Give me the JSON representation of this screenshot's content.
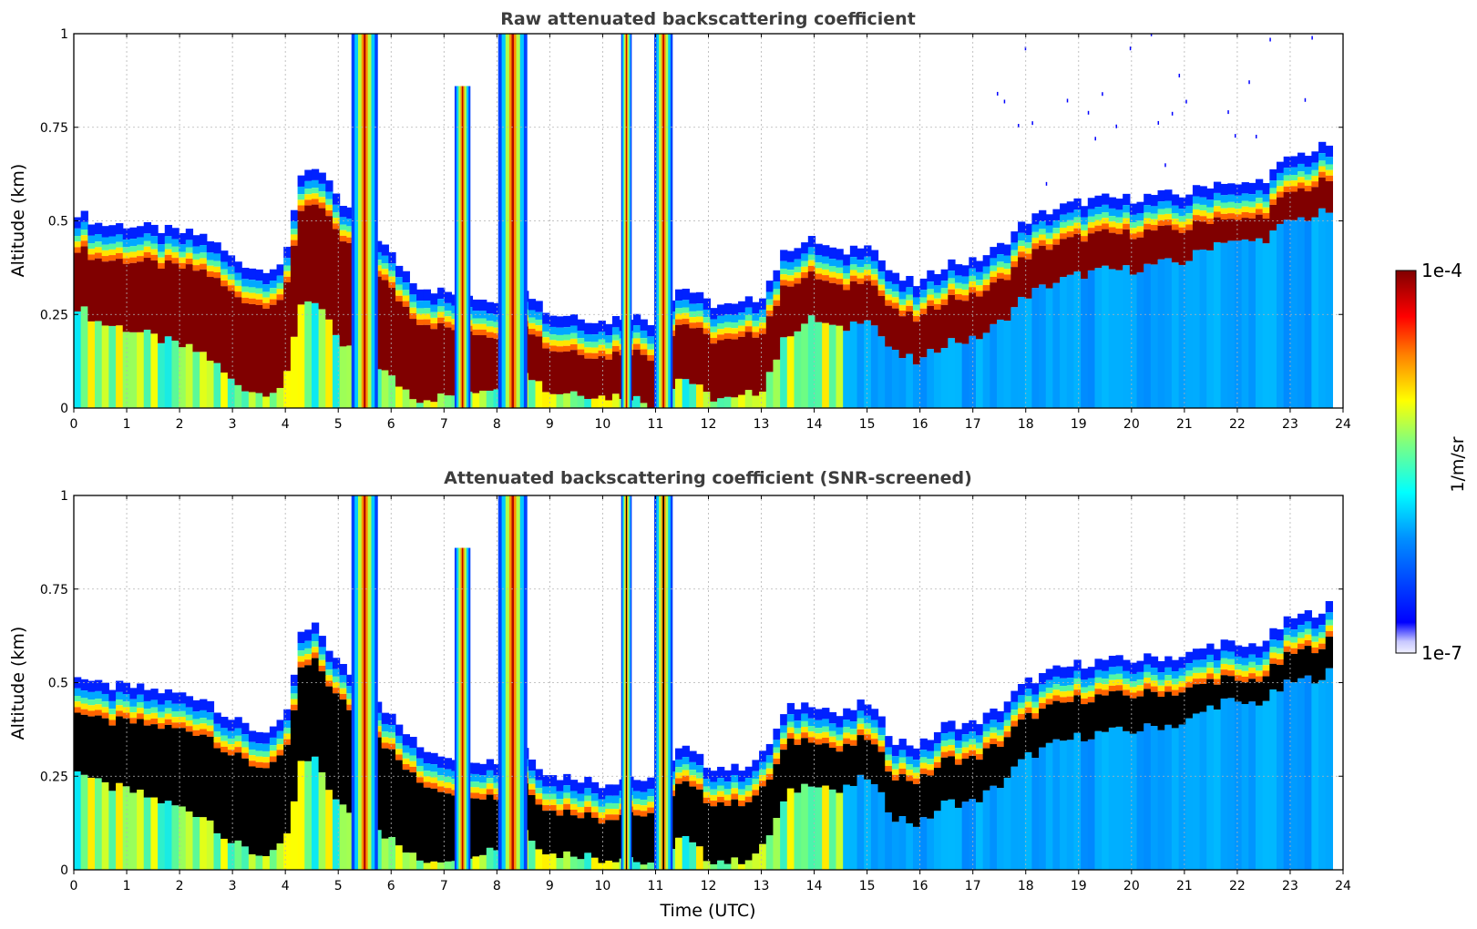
{
  "chart_data": [
    {
      "type": "heatmap",
      "title": "Raw attenuated backscattering coefficient",
      "xlabel": "",
      "ylabel": "Altitude (km)",
      "xlim": [
        0,
        24
      ],
      "ylim": [
        0,
        1
      ],
      "xticks": [
        "0",
        "1",
        "2",
        "3",
        "4",
        "5",
        "6",
        "7",
        "8",
        "9",
        "10",
        "11",
        "12",
        "13",
        "14",
        "15",
        "16",
        "17",
        "18",
        "19",
        "20",
        "21",
        "22",
        "23",
        "24"
      ],
      "yticks": [
        "0",
        "0.25",
        "0.5",
        "0.75",
        "1"
      ],
      "grid": true,
      "screened": false,
      "layer_top_km": [
        [
          0,
          0.5
        ],
        [
          0.5,
          0.46
        ],
        [
          1,
          0.46
        ],
        [
          1.5,
          0.45
        ],
        [
          2,
          0.44
        ],
        [
          2.5,
          0.43
        ],
        [
          3,
          0.37
        ],
        [
          3.5,
          0.34
        ],
        [
          4,
          0.36
        ],
        [
          4.3,
          0.6
        ],
        [
          4.6,
          0.62
        ],
        [
          5,
          0.52
        ],
        [
          5.5,
          0.47
        ],
        [
          6,
          0.38
        ],
        [
          6.5,
          0.3
        ],
        [
          7,
          0.28
        ],
        [
          7.5,
          0.27
        ],
        [
          8,
          0.26
        ],
        [
          8.5,
          0.3
        ],
        [
          9,
          0.22
        ],
        [
          9.5,
          0.22
        ],
        [
          10,
          0.2
        ],
        [
          10.5,
          0.22
        ],
        [
          11,
          0.2
        ],
        [
          11.5,
          0.3
        ],
        [
          12,
          0.25
        ],
        [
          12.5,
          0.24
        ],
        [
          13,
          0.27
        ],
        [
          13.5,
          0.4
        ],
        [
          14,
          0.42
        ],
        [
          14.5,
          0.38
        ],
        [
          15,
          0.42
        ],
        [
          15.5,
          0.32
        ],
        [
          16,
          0.3
        ],
        [
          16.5,
          0.36
        ],
        [
          17,
          0.36
        ],
        [
          17.5,
          0.4
        ],
        [
          18,
          0.47
        ],
        [
          18.5,
          0.5
        ],
        [
          19,
          0.52
        ],
        [
          19.5,
          0.53
        ],
        [
          20,
          0.53
        ],
        [
          20.5,
          0.54
        ],
        [
          21,
          0.54
        ],
        [
          21.5,
          0.57
        ],
        [
          21.8,
          0.58
        ],
        [
          22,
          0.56
        ],
        [
          22.5,
          0.58
        ],
        [
          23,
          0.64
        ],
        [
          23.5,
          0.66
        ],
        [
          23.8,
          0.68
        ]
      ],
      "layer_depth_km": [
        [
          0,
          0.22
        ],
        [
          3,
          0.3
        ],
        [
          4,
          0.3
        ],
        [
          5,
          0.35
        ],
        [
          6,
          0.3
        ],
        [
          7,
          0.25
        ],
        [
          8,
          0.2
        ],
        [
          9,
          0.18
        ],
        [
          10,
          0.17
        ],
        [
          11,
          0.2
        ],
        [
          12,
          0.22
        ],
        [
          13,
          0.22
        ],
        [
          14,
          0.18
        ],
        [
          15,
          0.17
        ],
        [
          16,
          0.18
        ],
        [
          17,
          0.18
        ],
        [
          18,
          0.17
        ],
        [
          20,
          0.16
        ],
        [
          21,
          0.15
        ],
        [
          22,
          0.12
        ],
        [
          23,
          0.14
        ],
        [
          23.8,
          0.15
        ]
      ],
      "vertical_plumes_utc": [
        {
          "center": 5.5,
          "width": 0.5,
          "top": 1.0
        },
        {
          "center": 7.35,
          "width": 0.3,
          "top": 0.86
        },
        {
          "center": 8.3,
          "width": 0.55,
          "top": 1.0
        },
        {
          "center": 10.45,
          "width": 0.2,
          "top": 1.0
        },
        {
          "center": 11.15,
          "width": 0.35,
          "top": 1.0
        }
      ],
      "data_end_utc": 23.8
    },
    {
      "type": "heatmap",
      "title": "Attenuated backscattering coefficient (SNR-screened)",
      "xlabel": "Time (UTC)",
      "ylabel": "Altitude (km)",
      "xlim": [
        0,
        24
      ],
      "ylim": [
        0,
        1
      ],
      "xticks": [
        "0",
        "1",
        "2",
        "3",
        "4",
        "5",
        "6",
        "7",
        "8",
        "9",
        "10",
        "11",
        "12",
        "13",
        "14",
        "15",
        "16",
        "17",
        "18",
        "19",
        "20",
        "21",
        "22",
        "23",
        "24"
      ],
      "yticks": [
        "0",
        "0.25",
        "0.5",
        "0.75",
        "1"
      ],
      "grid": true,
      "screened": true,
      "saturated_color": "#000000",
      "data_end_utc": 23.8
    }
  ],
  "colorbar": {
    "label": "1/m/sr",
    "max_label": "1e-4",
    "min_label": "1e-7",
    "colormap": "jet"
  }
}
